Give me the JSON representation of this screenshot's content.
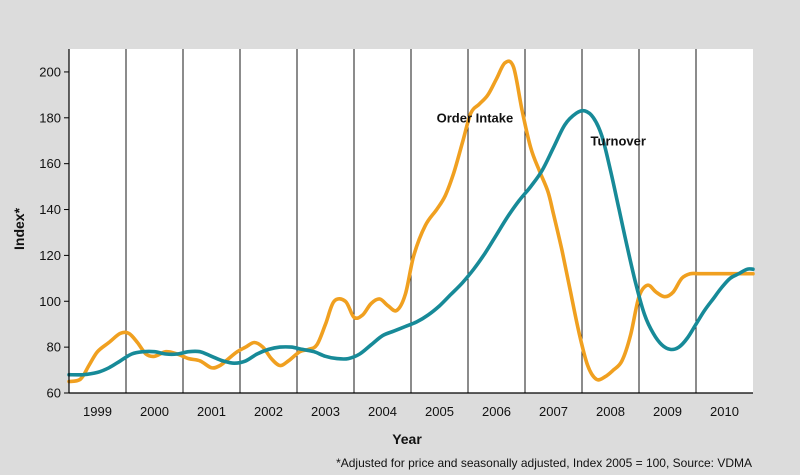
{
  "chart_data": {
    "type": "line",
    "xlabel": "Year",
    "ylabel": "Index*",
    "footnote": "*Adjusted for price and seasonally  adjusted, Index 2005 = 100, Source: VDMA",
    "ylim": [
      60,
      210
    ],
    "yticks": [
      60,
      80,
      100,
      120,
      140,
      160,
      180,
      200
    ],
    "xlim": [
      1998.5,
      2010.5
    ],
    "categories": [
      "1999",
      "2000",
      "2001",
      "2002",
      "2003",
      "2004",
      "2005",
      "2006",
      "2007",
      "2008",
      "2009",
      "2010"
    ],
    "grid": "vertical year separators",
    "legend": "none (inline labels)",
    "series": [
      {
        "name": "Order Intake",
        "color": "#f0a020",
        "x": [
          1998.5,
          1998.7,
          1998.85,
          1999.0,
          1999.2,
          1999.4,
          1999.55,
          1999.7,
          1999.85,
          2000.0,
          2000.2,
          2000.4,
          2000.6,
          2000.8,
          2001.0,
          2001.15,
          2001.3,
          2001.45,
          2001.6,
          2001.75,
          2001.9,
          2002.05,
          2002.2,
          2002.35,
          2002.55,
          2002.7,
          2002.85,
          2003.0,
          2003.15,
          2003.35,
          2003.5,
          2003.65,
          2003.8,
          2003.95,
          2004.1,
          2004.25,
          2004.4,
          2004.55,
          2004.75,
          2004.95,
          2005.1,
          2005.25,
          2005.4,
          2005.55,
          2005.7,
          2005.85,
          2006.0,
          2006.15,
          2006.3,
          2006.45,
          2006.6,
          2006.75,
          2006.9,
          2007.0,
          2007.15,
          2007.3,
          2007.45,
          2007.6,
          2007.75,
          2007.9,
          2008.05,
          2008.2,
          2008.35,
          2008.5,
          2008.65,
          2008.8,
          2008.95,
          2009.1,
          2009.25,
          2009.4,
          2009.55,
          2009.65,
          2009.8,
          2009.95,
          2010.1,
          2010.25,
          2010.4,
          2010.5
        ],
        "values": [
          65,
          66,
          72,
          78,
          82,
          86,
          86,
          82,
          77,
          76,
          78,
          77,
          75,
          74,
          71,
          72,
          75,
          78,
          80,
          82,
          80,
          75,
          72,
          74,
          78,
          79,
          81,
          90,
          100,
          100,
          93,
          94,
          99,
          101,
          98,
          96,
          103,
          120,
          133,
          140,
          146,
          156,
          169,
          182,
          186,
          190,
          197,
          204,
          202,
          183,
          167,
          157,
          148,
          138,
          122,
          104,
          86,
          72,
          66,
          67,
          70,
          74,
          85,
          102,
          107,
          104,
          102,
          104,
          110,
          112,
          112,
          112,
          112,
          112,
          112,
          112,
          112,
          112
        ]
      },
      {
        "name": "Turnover",
        "color": "#178a98",
        "x": [
          1998.5,
          1998.75,
          1999.0,
          1999.2,
          1999.4,
          1999.6,
          1999.8,
          2000.0,
          2000.2,
          2000.4,
          2000.6,
          2000.8,
          2001.0,
          2001.2,
          2001.4,
          2001.6,
          2001.8,
          2002.0,
          2002.2,
          2002.4,
          2002.6,
          2002.8,
          2003.0,
          2003.2,
          2003.4,
          2003.6,
          2003.8,
          2004.0,
          2004.2,
          2004.4,
          2004.6,
          2004.8,
          2005.0,
          2005.2,
          2005.4,
          2005.6,
          2005.8,
          2006.0,
          2006.2,
          2006.4,
          2006.6,
          2006.8,
          2007.0,
          2007.2,
          2007.4,
          2007.55,
          2007.7,
          2007.85,
          2008.0,
          2008.15,
          2008.3,
          2008.45,
          2008.6,
          2008.75,
          2008.9,
          2009.05,
          2009.2,
          2009.35,
          2009.5,
          2009.65,
          2009.8,
          2009.95,
          2010.1,
          2010.25,
          2010.4,
          2010.5
        ],
        "values": [
          68,
          68,
          69,
          71,
          74,
          77,
          78,
          78,
          77,
          77,
          78,
          78,
          76,
          74,
          73,
          74,
          77,
          79,
          80,
          80,
          79,
          78,
          76,
          75,
          75,
          77,
          81,
          85,
          87,
          89,
          91,
          94,
          98,
          103,
          108,
          114,
          121,
          129,
          137,
          144,
          150,
          157,
          167,
          177,
          182,
          183,
          180,
          172,
          157,
          140,
          123,
          107,
          94,
          86,
          81,
          79,
          80,
          84,
          90,
          96,
          101,
          106,
          110,
          112,
          114,
          114
        ]
      }
    ],
    "annotations": [
      {
        "text": "Order Intake",
        "x": 2004.95,
        "y": 178
      },
      {
        "text": "Turnover",
        "x": 2007.65,
        "y": 168
      }
    ]
  }
}
